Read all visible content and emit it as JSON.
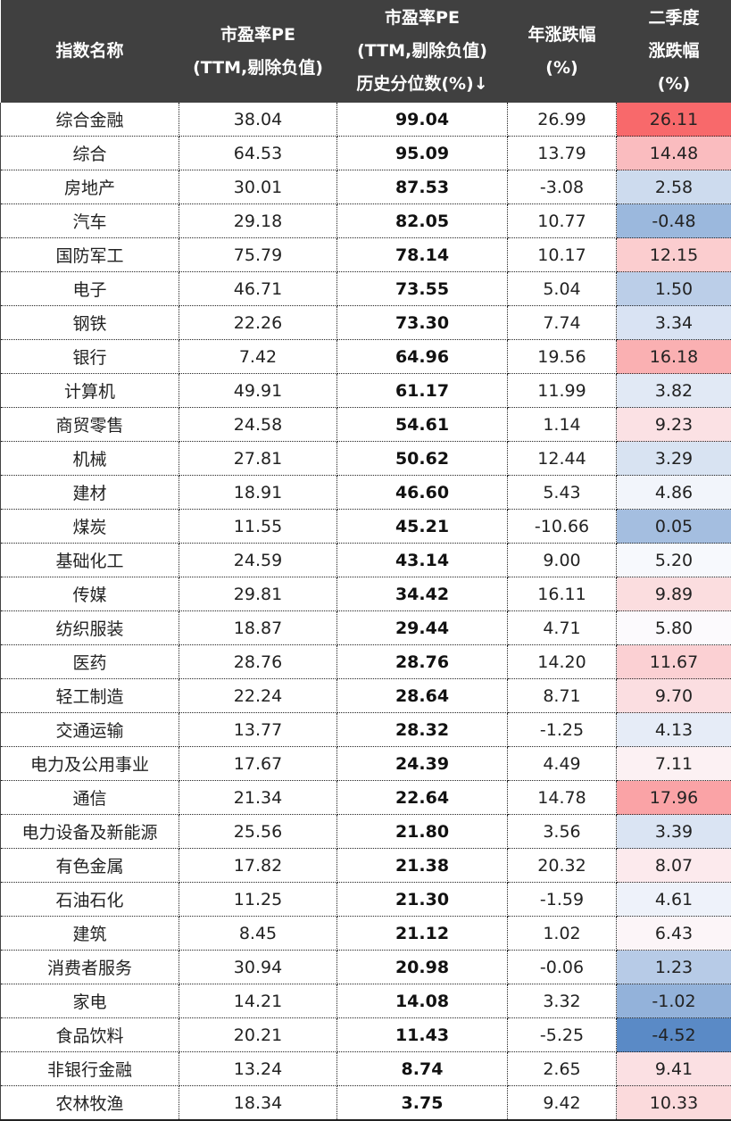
{
  "chart_data": {
    "type": "table",
    "columns": [
      {
        "lines": [
          "指数名称"
        ]
      },
      {
        "lines": [
          "市盈率PE",
          "(TTM,剔除负值)"
        ]
      },
      {
        "lines": [
          "市盈率PE",
          "(TTM,剔除负值)",
          "历史分位数(%)↓"
        ]
      },
      {
        "lines": [
          "年涨跌幅",
          "(%)"
        ]
      },
      {
        "lines": [
          "二季度",
          "涨跌幅",
          "(%)"
        ]
      }
    ],
    "rows": [
      [
        "综合金融",
        "38.04",
        "99.04",
        "26.99",
        "26.11"
      ],
      [
        "综合",
        "64.53",
        "95.09",
        "13.79",
        "14.48"
      ],
      [
        "房地产",
        "30.01",
        "87.53",
        "-3.08",
        "2.58"
      ],
      [
        "汽车",
        "29.18",
        "82.05",
        "10.77",
        "-0.48"
      ],
      [
        "国防军工",
        "75.79",
        "78.14",
        "10.17",
        "12.15"
      ],
      [
        "电子",
        "46.71",
        "73.55",
        "5.04",
        "1.50"
      ],
      [
        "钢铁",
        "22.26",
        "73.30",
        "7.74",
        "3.34"
      ],
      [
        "银行",
        "7.42",
        "64.96",
        "19.56",
        "16.18"
      ],
      [
        "计算机",
        "49.91",
        "61.17",
        "11.99",
        "3.82"
      ],
      [
        "商贸零售",
        "24.58",
        "54.61",
        "1.14",
        "9.23"
      ],
      [
        "机械",
        "27.81",
        "50.62",
        "12.44",
        "3.29"
      ],
      [
        "建材",
        "18.91",
        "46.60",
        "5.43",
        "4.86"
      ],
      [
        "煤炭",
        "11.55",
        "45.21",
        "-10.66",
        "0.05"
      ],
      [
        "基础化工",
        "24.59",
        "43.14",
        "9.00",
        "5.20"
      ],
      [
        "传媒",
        "29.81",
        "34.42",
        "16.11",
        "9.89"
      ],
      [
        "纺织服装",
        "18.87",
        "29.44",
        "4.71",
        "5.80"
      ],
      [
        "医药",
        "28.76",
        "28.76",
        "14.20",
        "11.67"
      ],
      [
        "轻工制造",
        "22.24",
        "28.64",
        "8.71",
        "9.70"
      ],
      [
        "交通运输",
        "13.77",
        "28.32",
        "-1.25",
        "4.13"
      ],
      [
        "电力及公用事业",
        "17.67",
        "24.39",
        "4.49",
        "7.11"
      ],
      [
        "通信",
        "21.34",
        "22.64",
        "14.78",
        "17.96"
      ],
      [
        "电力设备及新能源",
        "25.56",
        "21.80",
        "3.56",
        "3.39"
      ],
      [
        "有色金属",
        "17.82",
        "21.38",
        "20.32",
        "8.07"
      ],
      [
        "石油石化",
        "11.25",
        "21.30",
        "-1.59",
        "4.61"
      ],
      [
        "建筑",
        "8.45",
        "21.12",
        "1.02",
        "6.43"
      ],
      [
        "消费者服务",
        "30.94",
        "20.98",
        "-0.06",
        "1.23"
      ],
      [
        "家电",
        "14.21",
        "14.08",
        "3.32",
        "-1.02"
      ],
      [
        "食品饮料",
        "20.21",
        "11.43",
        "-5.25",
        "-4.52"
      ],
      [
        "非银行金融",
        "13.24",
        "8.74",
        "2.65",
        "9.41"
      ],
      [
        "农林牧渔",
        "18.34",
        "3.75",
        "9.42",
        "10.33"
      ]
    ],
    "sorted_by": "市盈率PE (TTM,剔除负值) 历史分位数(%)",
    "sort_order": "descending",
    "heatmap_column": 4,
    "colors": {
      "header_bg": "#404040",
      "high": "#f8696b",
      "mid": "#fcfcff",
      "low": "#5a8ac6"
    }
  }
}
